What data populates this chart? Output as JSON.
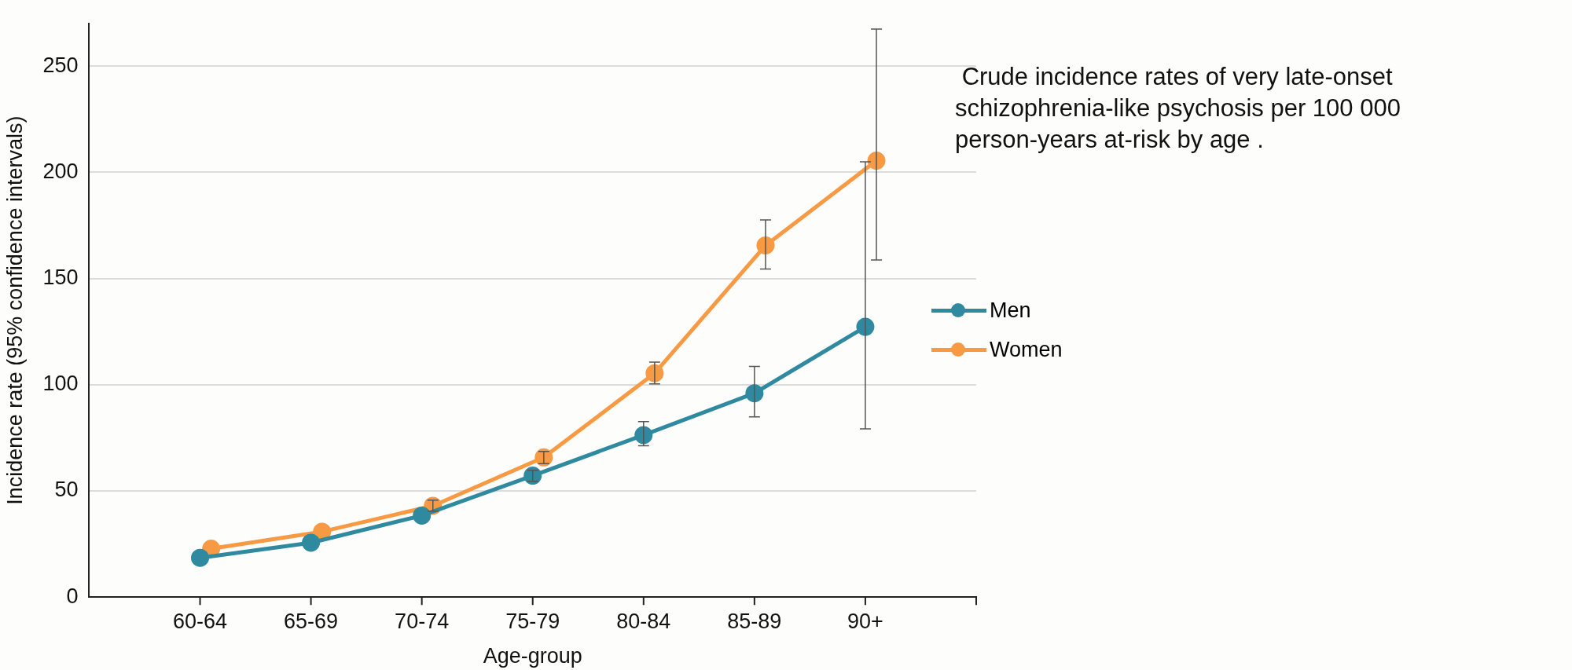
{
  "chart_data": {
    "type": "line",
    "title": " Crude incidence rates of very late-onset schizophrenia-like psychosis per 100 000 person-years at-risk by age .",
    "xlabel": "Age-group",
    "ylabel": "Incidence rate (95% confidence intervals)",
    "categories": [
      "60-64",
      "65-69",
      "70-74",
      "75-79",
      "80-84",
      "85-89",
      "90+"
    ],
    "series": [
      {
        "name": "Men",
        "color": "#2f8aa0",
        "values": [
          18.5,
          25.6,
          38.4,
          57.2,
          76.3,
          96,
          127.3
        ],
        "errors": [
          null,
          null,
          null,
          [
            54.5,
            59.7
          ],
          [
            71.3,
            82.6
          ],
          [
            84.9,
            108.6
          ],
          [
            79.2,
            205
          ]
        ]
      },
      {
        "name": "Women",
        "color": "#f79a43",
        "values": [
          22.8,
          30.8,
          43,
          65.8,
          105.4,
          165.6,
          205.5
        ],
        "errors": [
          null,
          null,
          [
            40.5,
            45.7
          ],
          [
            62.9,
            68.6
          ],
          [
            100.4,
            110.7
          ],
          [
            154.5,
            177.6
          ],
          [
            158.7,
            267.5
          ]
        ]
      }
    ],
    "ylim": [
      0,
      270
    ],
    "yticks": [
      0,
      50,
      100,
      150,
      200,
      250
    ],
    "grid": "y",
    "legend": "right",
    "marker": "circle",
    "line_style": "solid"
  }
}
